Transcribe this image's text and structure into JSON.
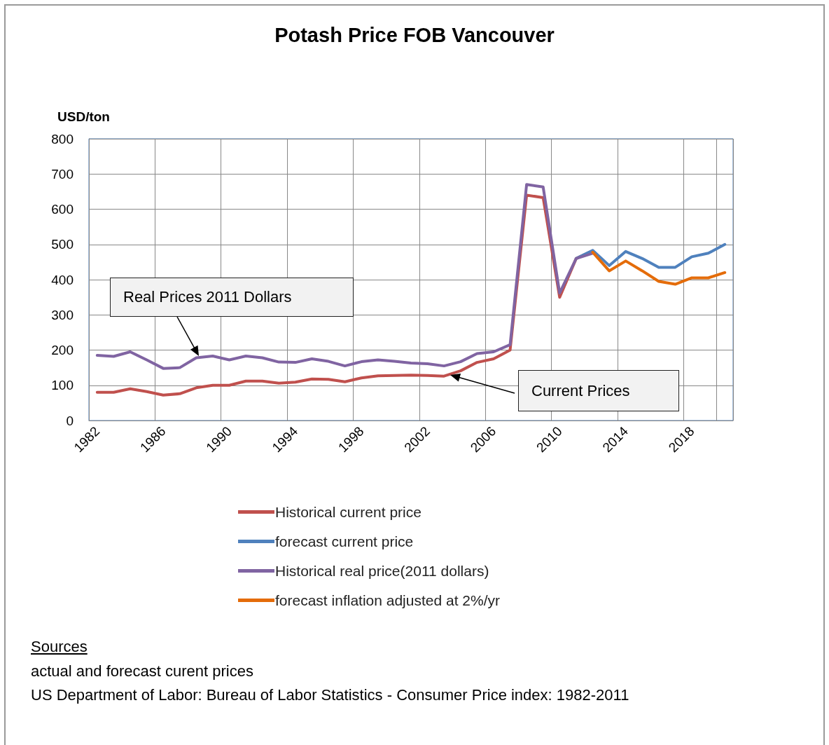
{
  "chart_data": {
    "type": "line",
    "title": "Potash Price FOB Vancouver",
    "ylabel": "USD/ton",
    "categories": [
      "1982",
      null,
      null,
      null,
      "1986",
      null,
      null,
      null,
      "1990",
      null,
      null,
      null,
      "1994",
      null,
      null,
      null,
      "1998",
      null,
      null,
      null,
      "2002",
      null,
      null,
      null,
      "2006",
      null,
      null,
      null,
      "2010",
      null,
      null,
      null,
      "2014",
      null,
      null,
      null,
      "2018",
      null,
      null
    ],
    "series": [
      {
        "name": "Historical current price",
        "color": "#c0504d",
        "values": [
          80,
          80,
          90,
          82,
          72,
          76,
          93,
          100,
          100,
          112,
          112,
          106,
          109,
          118,
          117,
          110,
          121,
          127,
          128,
          129,
          128,
          126,
          141,
          165,
          175,
          200,
          640,
          633,
          350,
          460,
          482,
          null,
          null,
          null,
          null,
          null,
          null,
          null,
          null
        ]
      },
      {
        "name": "forecast current price",
        "color": "#4f81bd",
        "values": [
          null,
          null,
          null,
          null,
          null,
          null,
          null,
          null,
          null,
          null,
          null,
          null,
          null,
          null,
          null,
          null,
          null,
          null,
          null,
          null,
          null,
          null,
          null,
          null,
          null,
          null,
          null,
          null,
          null,
          460,
          483,
          440,
          480,
          460,
          435,
          435,
          465,
          475,
          500
        ]
      },
      {
        "name": "Historical real price(2011 dollars)",
        "color": "#8064a2",
        "values": [
          185,
          182,
          195,
          172,
          148,
          150,
          178,
          183,
          172,
          183,
          178,
          166,
          165,
          175,
          168,
          155,
          167,
          172,
          168,
          163,
          161,
          155,
          167,
          190,
          195,
          215,
          670,
          663,
          362,
          460,
          475,
          null,
          null,
          null,
          null,
          null,
          null,
          null,
          null
        ]
      },
      {
        "name": "forecast inflation adjusted at 2%/yr",
        "color": "#e46c0a",
        "values": [
          null,
          null,
          null,
          null,
          null,
          null,
          null,
          null,
          null,
          null,
          null,
          null,
          null,
          null,
          null,
          null,
          null,
          null,
          null,
          null,
          null,
          null,
          null,
          null,
          null,
          null,
          null,
          null,
          null,
          null,
          478,
          425,
          453,
          425,
          395,
          387,
          405,
          405,
          420
        ]
      }
    ],
    "ylim": [
      0,
      800
    ],
    "yticks": [
      0,
      100,
      200,
      300,
      400,
      500,
      600,
      700,
      800
    ],
    "grid": true,
    "legend": "bottom",
    "marker": "none",
    "line_style": "solid",
    "annotations": [
      "Real Prices 2011 Dollars",
      "Current Prices",
      "Sources",
      "actual and forecast curent prices",
      "US Department of Labor: Bureau of Labor Statistics - Consumer Price index: 1982-2011"
    ]
  }
}
